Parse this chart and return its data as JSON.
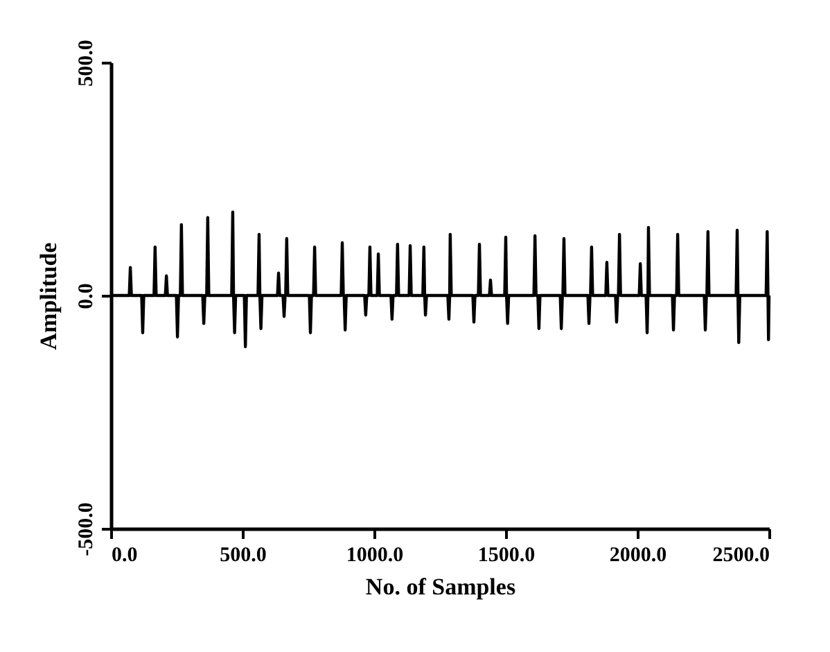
{
  "chart_data": {
    "type": "line",
    "xlabel": "No. of Samples",
    "ylabel": "Amplitude",
    "xlim": [
      0,
      2500
    ],
    "ylim": [
      -500,
      500
    ],
    "xticks": [
      {
        "value": 0,
        "label": "0.0"
      },
      {
        "value": 500,
        "label": "500.0"
      },
      {
        "value": 1000,
        "label": "1000.0"
      },
      {
        "value": 1500,
        "label": "1500.0"
      },
      {
        "value": 2000,
        "label": "2000.0"
      },
      {
        "value": 2500,
        "label": "2500.0"
      }
    ],
    "yticks": [
      {
        "value": -500,
        "label": "-500.0"
      },
      {
        "value": 0,
        "label": "0.0"
      },
      {
        "value": 500,
        "label": "500.0"
      }
    ],
    "grid": false,
    "marker": "none",
    "line_style": "solid",
    "series": [
      {
        "color": "#000000",
        "x": [
          0,
          70,
          74,
          78,
          117,
          121,
          125,
          164,
          168,
          172,
          207,
          211,
          215,
          249,
          253,
          257,
          264,
          268,
          272,
          349,
          353,
          357,
          364,
          368,
          372,
          459,
          463,
          466,
          470,
          474,
          507,
          511,
          515,
          559,
          563,
          566,
          570,
          574,
          633,
          637,
          641,
          654,
          658,
          662,
          664,
          668,
          672,
          754,
          758,
          762,
          770,
          774,
          778,
          875,
          879,
          883,
          886,
          890,
          894,
          964,
          968,
          972,
          980,
          984,
          988,
          1012,
          1016,
          1020,
          1064,
          1068,
          1072,
          1085,
          1089,
          1093,
          1133,
          1137,
          1141,
          1185,
          1189,
          1192,
          1195,
          1199,
          1280,
          1284,
          1287,
          1289,
          1293,
          1375,
          1379,
          1383,
          1396,
          1400,
          1404,
          1438,
          1442,
          1446,
          1496,
          1500,
          1503,
          1507,
          1511,
          1607,
          1611,
          1615,
          1622,
          1626,
          1630,
          1707,
          1711,
          1715,
          1717,
          1721,
          1725,
          1812,
          1816,
          1820,
          1822,
          1826,
          1830,
          1880,
          1884,
          1888,
          1917,
          1921,
          1925,
          1928,
          1932,
          1936,
          2007,
          2011,
          2015,
          2033,
          2037,
          2040,
          2042,
          2046,
          2133,
          2137,
          2141,
          2149,
          2153,
          2157,
          2254,
          2258,
          2262,
          2264,
          2268,
          2272,
          2375,
          2379,
          2382,
          2385,
          2389,
          2489,
          2493,
          2496,
          2498,
          2500
        ],
        "values": [
          0,
          0,
          60,
          0,
          0,
          -80,
          0,
          0,
          104,
          0,
          0,
          42,
          0,
          0,
          -89,
          0,
          0,
          152,
          0,
          0,
          -60,
          0,
          0,
          167,
          0,
          0,
          179,
          0,
          -80,
          0,
          0,
          -110,
          0,
          0,
          131,
          0,
          -71,
          0,
          0,
          48,
          0,
          0,
          -45,
          0,
          0,
          122,
          0,
          0,
          -80,
          0,
          0,
          104,
          0,
          0,
          113,
          0,
          0,
          -74,
          0,
          0,
          -42,
          0,
          0,
          104,
          0,
          0,
          89,
          0,
          0,
          -51,
          0,
          0,
          110,
          0,
          0,
          107,
          0,
          0,
          104,
          0,
          -42,
          0,
          0,
          -51,
          0,
          131,
          0,
          0,
          -57,
          0,
          0,
          110,
          0,
          0,
          33,
          0,
          0,
          125,
          0,
          -60,
          0,
          0,
          128,
          0,
          0,
          -71,
          0,
          0,
          -71,
          0,
          0,
          122,
          0,
          0,
          -60,
          0,
          0,
          104,
          0,
          0,
          71,
          0,
          0,
          -57,
          0,
          0,
          131,
          0,
          0,
          68,
          0,
          0,
          -80,
          0,
          146,
          0,
          0,
          -74,
          0,
          0,
          131,
          0,
          0,
          -74,
          0,
          0,
          137,
          0,
          0,
          140,
          0,
          -101,
          0,
          0,
          137,
          0,
          -95,
          0
        ]
      }
    ]
  }
}
